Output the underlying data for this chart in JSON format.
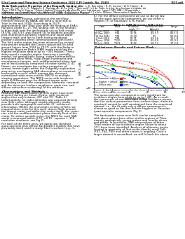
{
  "title_header": "52nd Lunar and Planetary Science Conference 2021 (LPI Contrib. No. 2548)",
  "page_number": "1525.pdf",
  "bg_color": "#ffffff",
  "body_fontsize": 2.8,
  "header_fontsize": 2.9,
  "section_fontsize": 3.0,
  "table_data": [
    [
      "2 Oct 2007",
      "T36",
      "42-47",
      "2.6-3.6",
      "2.0-2.6"
    ],
    [
      "20 Dec 2007",
      "T39",
      "20-25",
      "0.9-1.7",
      "0.5-1.0"
    ],
    [
      "11 Oct 2011",
      "T78",
      "20-29",
      "0.5",
      "0.5-0.8"
    ],
    [
      "2 Feb 2014",
      "T98",
      "64-71",
      "0.9-3.6",
      "1.5-1.9"
    ],
    [
      "7 June 2016",
      "T120",
      "66-69",
      "0.5-0.9",
      "0.2-0.3"
    ],
    [
      "25 July 2016",
      "T121",
      "37-42",
      "5.8-7.2",
      "1.7-2.4"
    ]
  ]
}
